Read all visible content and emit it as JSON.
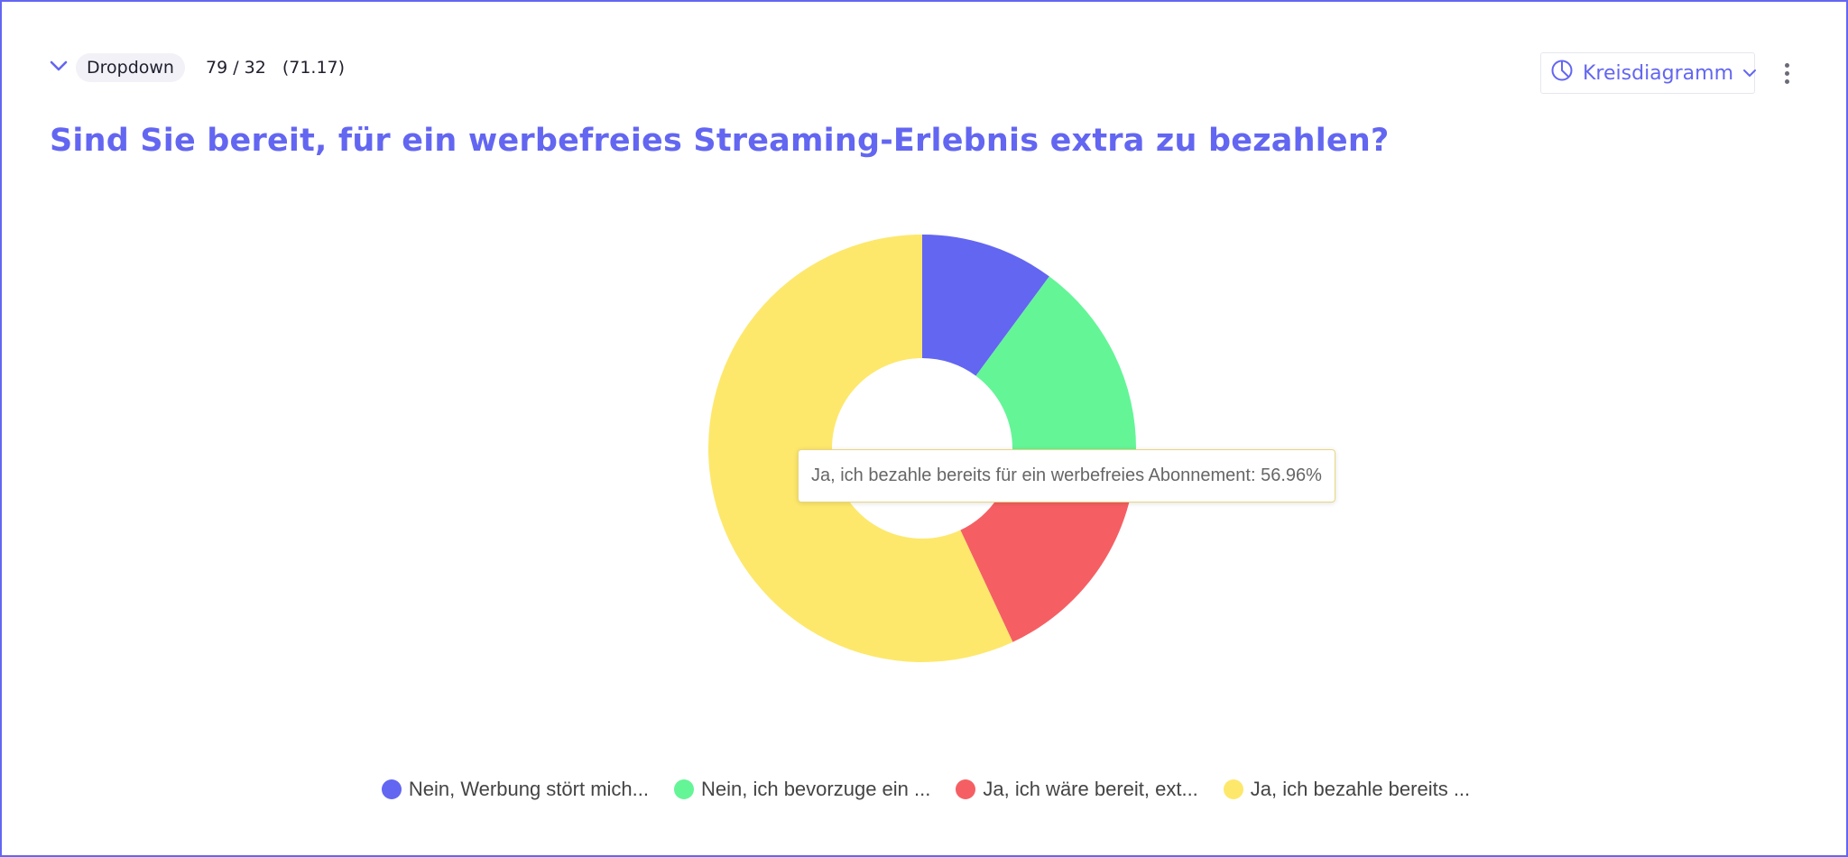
{
  "header": {
    "question_type": "Dropdown",
    "counts": "79 / 32",
    "average": "(71.17)",
    "chart_type_label": "Kreisdiagramm"
  },
  "question": {
    "title": "Sind Sie bereit, für ein werbefreies Streaming-Erlebnis extra zu bezahlen?"
  },
  "tooltip": {
    "text": "Ja, ich bezahle bereits für ein werbefreies Abonnement: 56.96%"
  },
  "colors": {
    "accent": "#6366f1"
  },
  "chart_data": {
    "type": "pie",
    "donut": true,
    "series": [
      {
        "name": "Nein, Werbung stört mich...",
        "value": 10.13,
        "color": "#6366f1"
      },
      {
        "name": "Nein, ich bevorzuge ein ...",
        "value": 15.19,
        "color": "#64f597"
      },
      {
        "name": "Ja, ich wäre bereit, ext...",
        "value": 17.72,
        "color": "#f55f63"
      },
      {
        "name": "Ja, ich bezahle bereits ...",
        "value": 56.96,
        "color": "#fde86c"
      }
    ],
    "legend": "bottom"
  }
}
